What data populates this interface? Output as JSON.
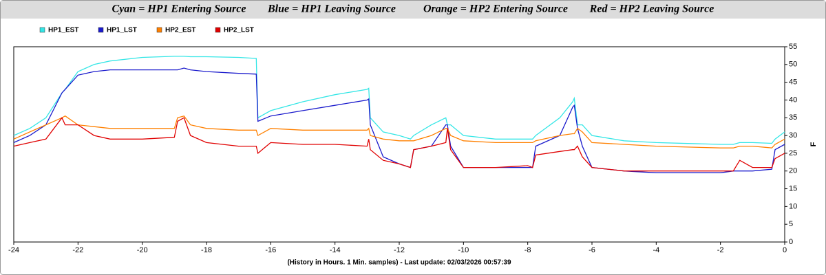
{
  "chart_data": {
    "type": "line",
    "title": [
      "Cyan = HP1 Entering Source",
      "Blue = HP1 Leaving Source",
      "Orange = HP2 Entering Source",
      "Red = HP2 Leaving Source"
    ],
    "x_label": "(History in Hours. 1 Min. samples) - Last update: 02/03/2026 00:57:39",
    "y_label": "F",
    "x": [
      -24,
      -23.5,
      -23,
      -22.5,
      -22.4,
      -22,
      -21.5,
      -21,
      -20,
      -19,
      -18.9,
      -18.7,
      -18.5,
      -18,
      -17,
      -16.45,
      -16.4,
      -16,
      -15,
      -14,
      -13,
      -12.95,
      -12.9,
      -12.5,
      -12,
      -11.65,
      -11.55,
      -11,
      -10.55,
      -10.5,
      -10.4,
      -10,
      -9,
      -8,
      -7.85,
      -7.75,
      -7,
      -6.6,
      -6.55,
      -6.45,
      -6.3,
      -6,
      -5,
      -4,
      -2,
      -1.6,
      -1.4,
      -1,
      -0.4,
      -0.3,
      0
    ],
    "series": [
      {
        "name": "HP1_EST",
        "color": "#33e6e6",
        "values": [
          30,
          32,
          35,
          42,
          43,
          48,
          50,
          51,
          52,
          52.3,
          52.3,
          52.3,
          52.2,
          52.2,
          52,
          51.7,
          35,
          37,
          39.5,
          41.5,
          43,
          43.3,
          35,
          31,
          30,
          29,
          30,
          33,
          35,
          33,
          33,
          30,
          29,
          29,
          29,
          30,
          35,
          39.5,
          40.5,
          33,
          33,
          30,
          28.5,
          28,
          27.5,
          27.5,
          28,
          28,
          27.8,
          29,
          31
        ]
      },
      {
        "name": "HP1_LST",
        "color": "#1a1acc",
        "values": [
          28,
          30,
          33,
          42,
          43,
          47,
          48,
          48.5,
          48.5,
          48.5,
          48.5,
          49,
          48.5,
          48,
          47.5,
          47.3,
          34,
          35.5,
          37,
          38.5,
          40,
          40.3,
          33,
          24,
          22,
          21,
          26,
          27,
          33,
          33,
          27,
          21,
          21,
          21,
          21,
          27,
          30,
          38,
          38.5,
          32,
          27,
          21,
          20,
          19.5,
          19.5,
          20,
          20,
          20,
          20.5,
          26,
          27.5
        ]
      },
      {
        "name": "HP2_EST",
        "color": "#ff8000",
        "values": [
          29,
          31,
          33,
          35,
          35.5,
          33,
          32.5,
          32,
          32,
          32,
          35,
          35.5,
          33,
          32,
          31.5,
          31.5,
          30,
          32,
          31.5,
          31.5,
          31.5,
          32,
          30,
          29,
          28.5,
          28.5,
          28.5,
          30,
          32,
          32,
          30,
          28.5,
          28,
          28,
          28,
          28.5,
          30,
          30.5,
          30.5,
          32,
          31,
          28,
          27.5,
          27,
          26.5,
          26.5,
          27,
          27,
          26.5,
          27.5,
          29
        ]
      },
      {
        "name": "HP2_LST",
        "color": "#e00000",
        "values": [
          27,
          28,
          29,
          35,
          33,
          33,
          30,
          29,
          29,
          29.5,
          34,
          35,
          30,
          28,
          27,
          27,
          25,
          28,
          27.5,
          27.5,
          27,
          29,
          26,
          23,
          22,
          21,
          26,
          27,
          28,
          32,
          26,
          21,
          21,
          21.5,
          21,
          24.5,
          25.5,
          26,
          26,
          27,
          24,
          21,
          20,
          20,
          20,
          20,
          23,
          21,
          21,
          23.5,
          25
        ]
      }
    ],
    "xlim": [
      -24,
      0
    ],
    "xticks": [
      -24,
      -22,
      -20,
      -18,
      -16,
      -14,
      -12,
      -10,
      -8,
      -6,
      -4,
      -2,
      0
    ],
    "ylim": [
      0,
      55
    ],
    "yticks": [
      0,
      5,
      10,
      15,
      20,
      25,
      30,
      35,
      40,
      45,
      50,
      55
    ],
    "grid": false
  }
}
